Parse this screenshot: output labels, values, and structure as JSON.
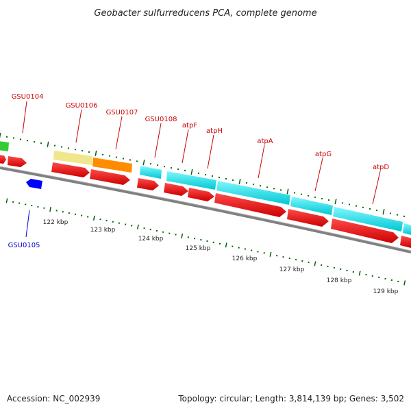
{
  "title": "Geobacter sulfurreducens PCA, complete genome",
  "footer": {
    "accession": "Accession: NC_002939",
    "topology": "Topology: circular; Length: 3,814,139 bp; Genes: 3,502"
  },
  "gene_labels": [
    {
      "text": "GSU0104",
      "color": "#cc0000"
    },
    {
      "text": "GSU0105",
      "color": "#0000cc"
    },
    {
      "text": "GSU0106",
      "color": "#cc0000"
    },
    {
      "text": "GSU0107",
      "color": "#cc0000"
    },
    {
      "text": "GSU0108",
      "color": "#cc0000"
    },
    {
      "text": "atpF",
      "color": "#cc0000"
    },
    {
      "text": "atpH",
      "color": "#cc0000"
    },
    {
      "text": "atpA",
      "color": "#cc0000"
    },
    {
      "text": "atpG",
      "color": "#cc0000"
    },
    {
      "text": "atpD",
      "color": "#cc0000"
    }
  ],
  "kbp_ticks": [
    "122 kbp",
    "123 kbp",
    "124 kbp",
    "125 kbp",
    "126 kbp",
    "127 kbp",
    "128 kbp",
    "129 kbp"
  ],
  "colors": {
    "cds": "#ff0000",
    "green": "#33cc33",
    "khaki": "#f0e68c",
    "orange": "#ff8c00",
    "cyan": "#00e5ee",
    "blue": "#0000ff",
    "backbone": "#808080",
    "tick": "#006400"
  }
}
